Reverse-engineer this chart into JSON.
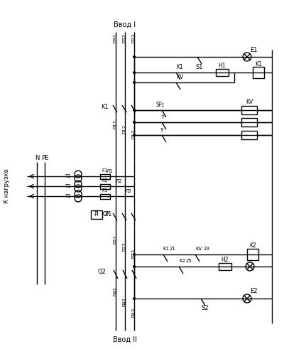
{
  "bg_color": "#ffffff",
  "figsize": [
    4.0,
    4.91
  ],
  "dpi": 100,
  "vvod1_label": "Ввод I",
  "vvod2_label": "Ввод II",
  "k_nagruzke": "К нагрузке"
}
